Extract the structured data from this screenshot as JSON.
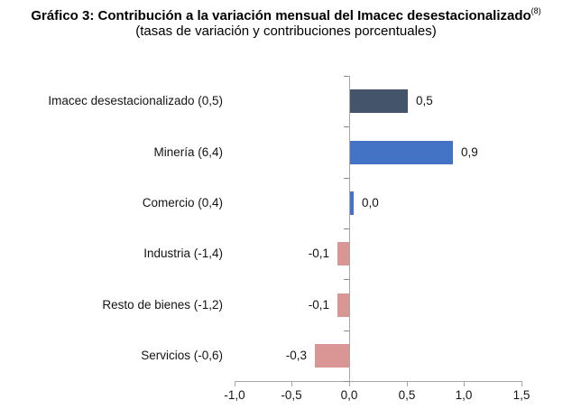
{
  "chart_data": {
    "type": "bar",
    "orientation": "horizontal",
    "title": "Gráfico 3: Contribución a la variación mensual del Imacec desestacionalizado",
    "title_superscript": "(8)",
    "subtitle": "(tasas de variación y contribuciones porcentuales)",
    "categories": [
      "Imacec desestacionalizado (0,5)",
      "Minería (6,4)",
      "Comercio (0,4)",
      "Industria (-1,4)",
      "Resto de bienes (-1,2)",
      "Servicios (-0,6)"
    ],
    "values": [
      0.5,
      0.9,
      0.0,
      -0.1,
      -0.1,
      -0.3
    ],
    "value_labels": [
      "0,5",
      "0,9",
      "0,0",
      "-0,1",
      "-0,1",
      "-0,3"
    ],
    "bar_colors": [
      "#44546A",
      "#4472C4",
      "#4472C4",
      "#D99694",
      "#D99694",
      "#D99694"
    ],
    "xlim": [
      -1.0,
      1.5
    ],
    "x_tick_values": [
      -1.0,
      -0.5,
      0.0,
      0.5,
      1.0,
      1.5
    ],
    "x_tick_labels": [
      "-1,0",
      "-0,5",
      "0,0",
      "0,5",
      "1,0",
      "1,5"
    ],
    "grid": false,
    "legend": false,
    "axis_color": "#a6a6a6",
    "category_axis_color": "#8c8c8c",
    "label_text_color": "#141414"
  }
}
